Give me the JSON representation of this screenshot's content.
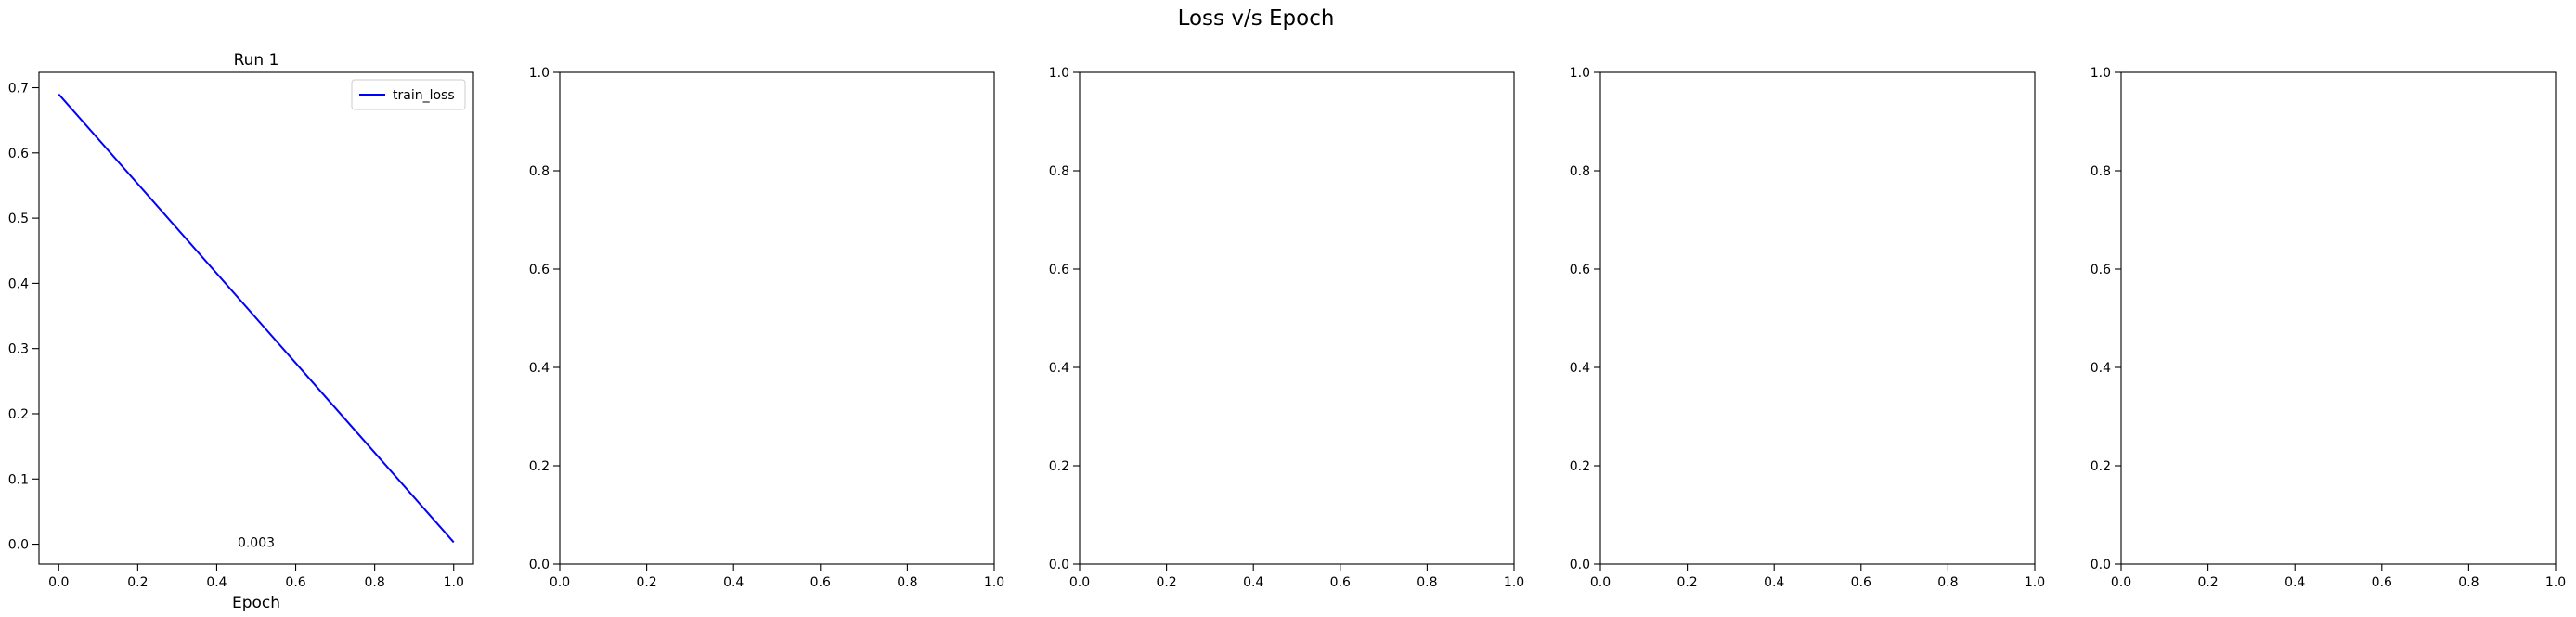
{
  "figure": {
    "suptitle": "Loss v/s Epoch"
  },
  "colors": {
    "train_loss": "#0000ff",
    "axes": "#000000",
    "background": "#ffffff"
  },
  "chart_data": [
    {
      "type": "line",
      "title": "Run 1",
      "xlabel": "Epoch",
      "ylabel": "",
      "xlim": [
        -0.05,
        1.05
      ],
      "ylim": [
        -0.0305,
        0.7235
      ],
      "xticks": [
        0.0,
        0.2,
        0.4,
        0.6,
        0.8,
        1.0
      ],
      "xtick_labels": [
        "0.0",
        "0.2",
        "0.4",
        "0.6",
        "0.8",
        "1.0"
      ],
      "yticks": [
        0.0,
        0.1,
        0.2,
        0.3,
        0.4,
        0.5,
        0.6,
        0.7
      ],
      "ytick_labels": [
        "0.0",
        "0.1",
        "0.2",
        "0.3",
        "0.4",
        "0.5",
        "0.6",
        "0.7"
      ],
      "grid": false,
      "legend": "upper-right",
      "series": [
        {
          "name": "train_loss",
          "color": "#0000ff",
          "x": [
            0.0,
            1.0
          ],
          "y": [
            0.69,
            0.003
          ]
        }
      ],
      "annotations": [
        {
          "text": "0.003",
          "x": 0.5,
          "y": 0.003
        }
      ]
    },
    {
      "type": "line",
      "title": "",
      "xlabel": "",
      "ylabel": "",
      "xlim": [
        0,
        1
      ],
      "ylim": [
        0,
        1
      ],
      "xticks": [
        0.0,
        0.2,
        0.4,
        0.6,
        0.8,
        1.0
      ],
      "xtick_labels": [
        "0.0",
        "0.2",
        "0.4",
        "0.6",
        "0.8",
        "1.0"
      ],
      "yticks": [
        0.0,
        0.2,
        0.4,
        0.6,
        0.8,
        1.0
      ],
      "ytick_labels": [
        "0.0",
        "0.2",
        "0.4",
        "0.6",
        "0.8",
        "1.0"
      ],
      "grid": false,
      "series": [],
      "annotations": []
    },
    {
      "type": "line",
      "title": "",
      "xlabel": "",
      "ylabel": "",
      "xlim": [
        0,
        1
      ],
      "ylim": [
        0,
        1
      ],
      "xticks": [
        0.0,
        0.2,
        0.4,
        0.6,
        0.8,
        1.0
      ],
      "xtick_labels": [
        "0.0",
        "0.2",
        "0.4",
        "0.6",
        "0.8",
        "1.0"
      ],
      "yticks": [
        0.0,
        0.2,
        0.4,
        0.6,
        0.8,
        1.0
      ],
      "ytick_labels": [
        "0.0",
        "0.2",
        "0.4",
        "0.6",
        "0.8",
        "1.0"
      ],
      "grid": false,
      "series": [],
      "annotations": []
    },
    {
      "type": "line",
      "title": "",
      "xlabel": "",
      "ylabel": "",
      "xlim": [
        0,
        1
      ],
      "ylim": [
        0,
        1
      ],
      "xticks": [
        0.0,
        0.2,
        0.4,
        0.6,
        0.8,
        1.0
      ],
      "xtick_labels": [
        "0.0",
        "0.2",
        "0.4",
        "0.6",
        "0.8",
        "1.0"
      ],
      "yticks": [
        0.0,
        0.2,
        0.4,
        0.6,
        0.8,
        1.0
      ],
      "ytick_labels": [
        "0.0",
        "0.2",
        "0.4",
        "0.6",
        "0.8",
        "1.0"
      ],
      "grid": false,
      "series": [],
      "annotations": []
    },
    {
      "type": "line",
      "title": "",
      "xlabel": "",
      "ylabel": "",
      "xlim": [
        0,
        1
      ],
      "ylim": [
        0,
        1
      ],
      "xticks": [
        0.0,
        0.2,
        0.4,
        0.6,
        0.8,
        1.0
      ],
      "xtick_labels": [
        "0.0",
        "0.2",
        "0.4",
        "0.6",
        "0.8",
        "1.0"
      ],
      "yticks": [
        0.0,
        0.2,
        0.4,
        0.6,
        0.8,
        1.0
      ],
      "ytick_labels": [
        "0.0",
        "0.2",
        "0.4",
        "0.6",
        "0.8",
        "1.0"
      ],
      "grid": false,
      "series": [],
      "annotations": []
    }
  ]
}
